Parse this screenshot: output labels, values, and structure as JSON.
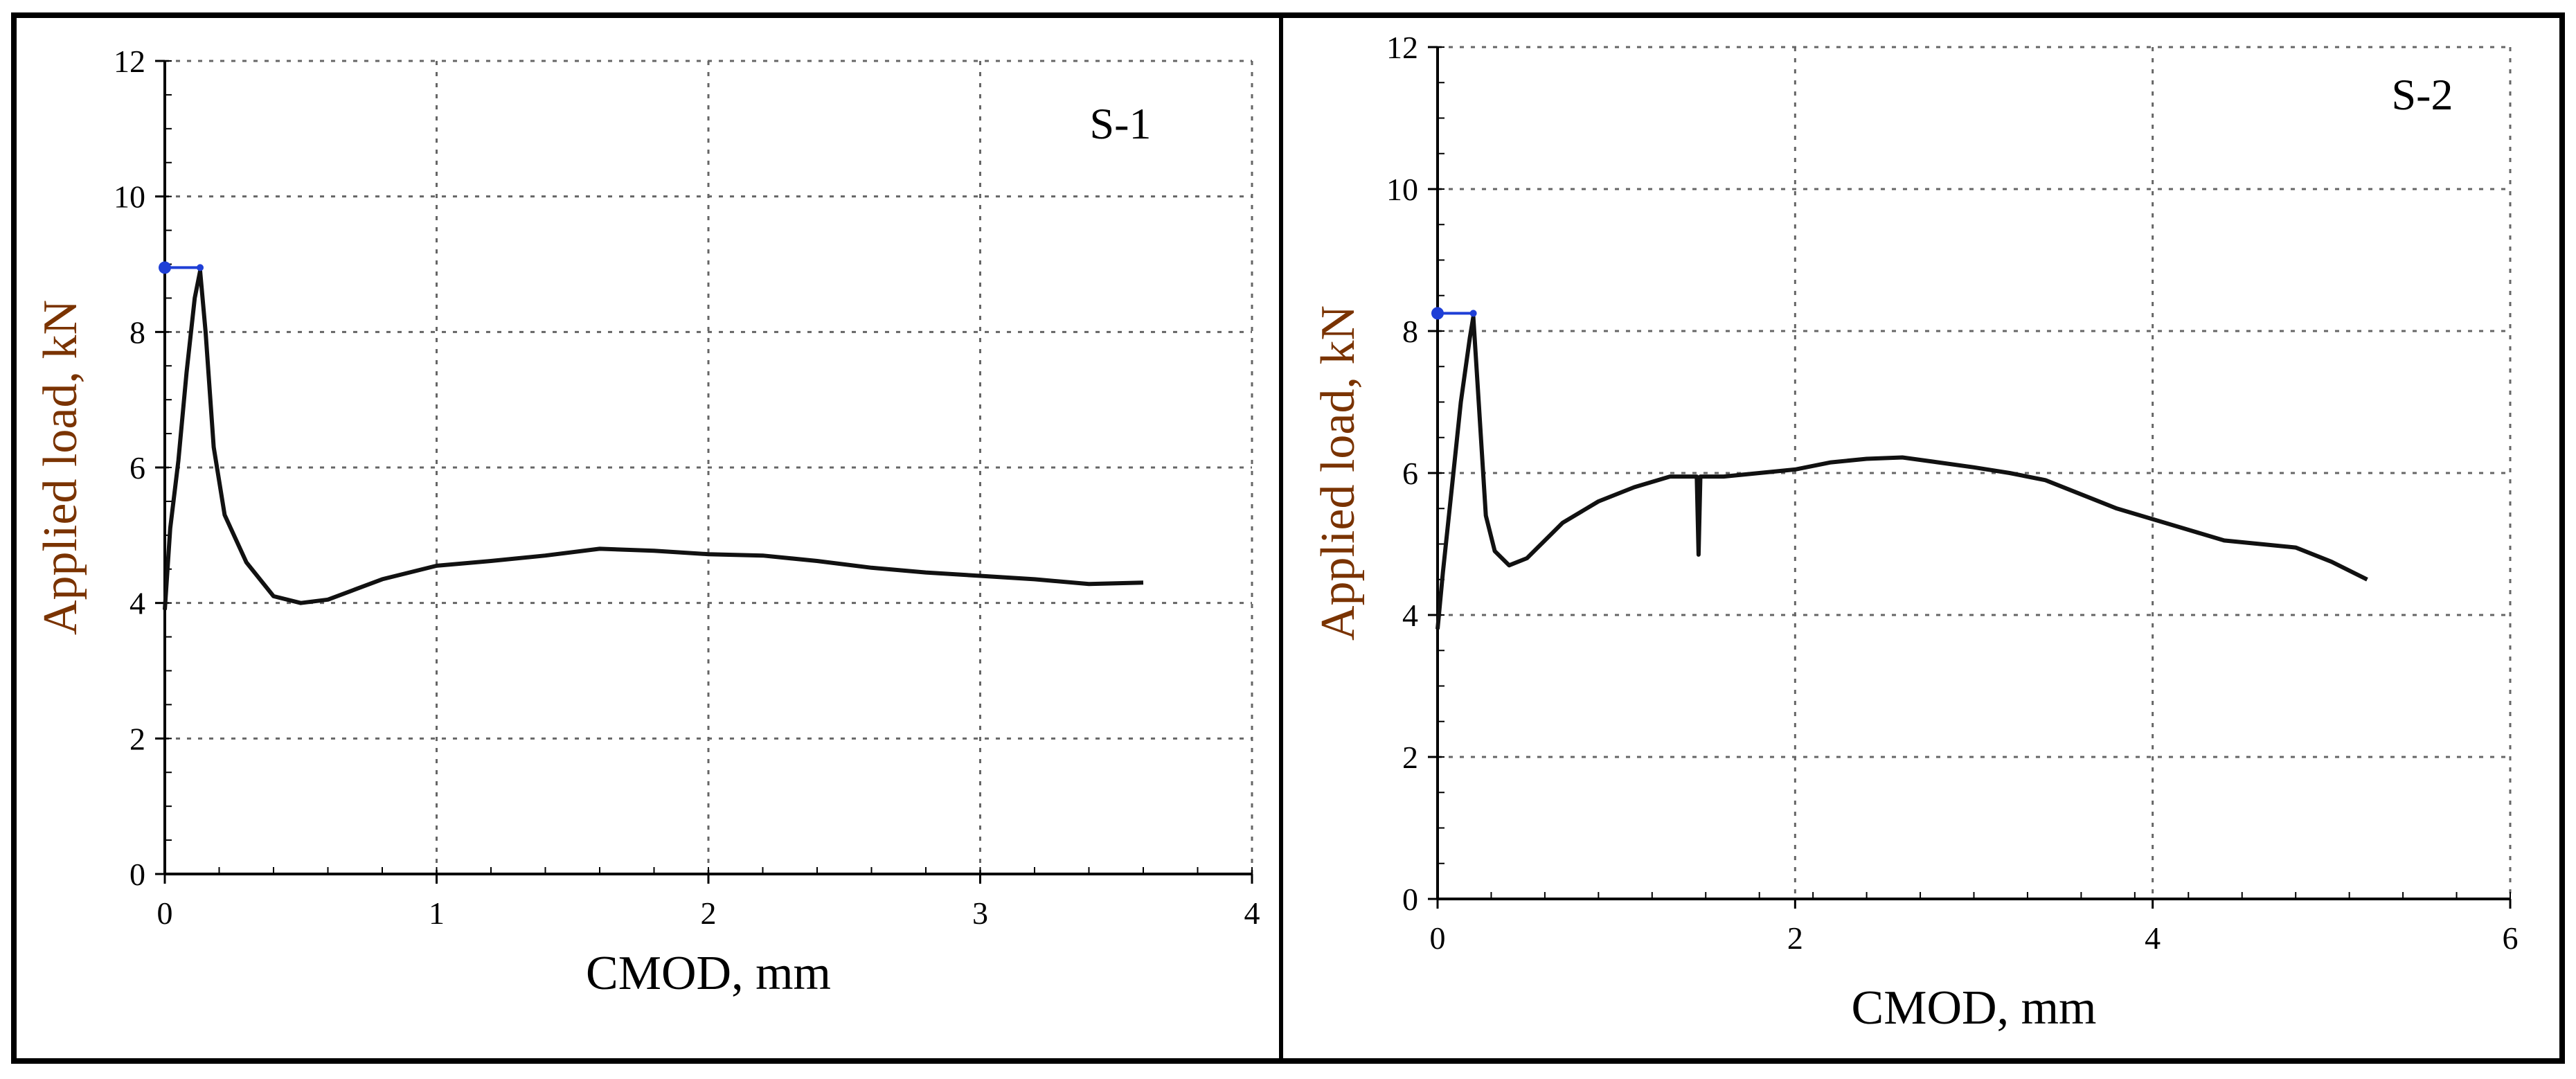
{
  "chart_data": [
    {
      "type": "line",
      "panel_label": "S-1",
      "xlabel": "CMOD, mm",
      "ylabel": "Applied load, kN",
      "xlim": [
        0,
        4
      ],
      "ylim": [
        0,
        12
      ],
      "xticks": [
        "0",
        "1",
        "2",
        "3",
        "4"
      ],
      "yticks": [
        "0",
        "2",
        "4",
        "6",
        "8",
        "10",
        "12"
      ],
      "grid": true,
      "peak_marker": {
        "x": [
          0,
          0.13
        ],
        "y": [
          8.95,
          8.95
        ],
        "color": "#1f3fd6"
      },
      "series": [
        {
          "name": "S-1",
          "color": "#111111",
          "x": [
            0,
            0.02,
            0.05,
            0.08,
            0.11,
            0.13,
            0.15,
            0.18,
            0.22,
            0.3,
            0.4,
            0.5,
            0.6,
            0.7,
            0.8,
            0.9,
            1.0,
            1.2,
            1.4,
            1.6,
            1.8,
            2.0,
            2.2,
            2.4,
            2.6,
            2.8,
            3.0,
            3.2,
            3.4,
            3.6
          ],
          "y": [
            3.9,
            5.1,
            6.1,
            7.4,
            8.5,
            8.9,
            8.0,
            6.3,
            5.3,
            4.6,
            4.1,
            4.0,
            4.05,
            4.2,
            4.35,
            4.45,
            4.55,
            4.62,
            4.7,
            4.8,
            4.77,
            4.72,
            4.7,
            4.62,
            4.52,
            4.45,
            4.4,
            4.35,
            4.28,
            4.3
          ]
        }
      ]
    },
    {
      "type": "line",
      "panel_label": "S-2",
      "xlabel": "CMOD, mm",
      "ylabel": "Applied load, kN",
      "xlim": [
        0,
        6
      ],
      "ylim": [
        0,
        12
      ],
      "xticks": [
        "0",
        "2",
        "4",
        "6"
      ],
      "yticks": [
        "0",
        "2",
        "4",
        "6",
        "8",
        "10",
        "12"
      ],
      "grid": true,
      "peak_marker": {
        "x": [
          0,
          0.2
        ],
        "y": [
          8.25,
          8.25
        ],
        "color": "#1f3fd6"
      },
      "series": [
        {
          "name": "S-2",
          "color": "#111111",
          "x": [
            0,
            0.03,
            0.08,
            0.13,
            0.18,
            0.2,
            0.23,
            0.27,
            0.32,
            0.4,
            0.5,
            0.7,
            0.9,
            1.1,
            1.3,
            1.45,
            1.46,
            1.47,
            1.6,
            1.8,
            2.0,
            2.2,
            2.4,
            2.6,
            2.8,
            3.0,
            3.2,
            3.4,
            3.6,
            3.8,
            4.0,
            4.2,
            4.4,
            4.6,
            4.8,
            5.0,
            5.2
          ],
          "y": [
            3.8,
            4.6,
            5.8,
            7.0,
            7.9,
            8.2,
            7.0,
            5.4,
            4.9,
            4.7,
            4.8,
            5.3,
            5.6,
            5.8,
            5.95,
            5.95,
            4.85,
            5.95,
            5.95,
            6.0,
            6.05,
            6.15,
            6.2,
            6.22,
            6.15,
            6.08,
            6.0,
            5.9,
            5.7,
            5.5,
            5.35,
            5.2,
            5.05,
            5.0,
            4.95,
            4.75,
            4.5
          ]
        }
      ]
    }
  ]
}
